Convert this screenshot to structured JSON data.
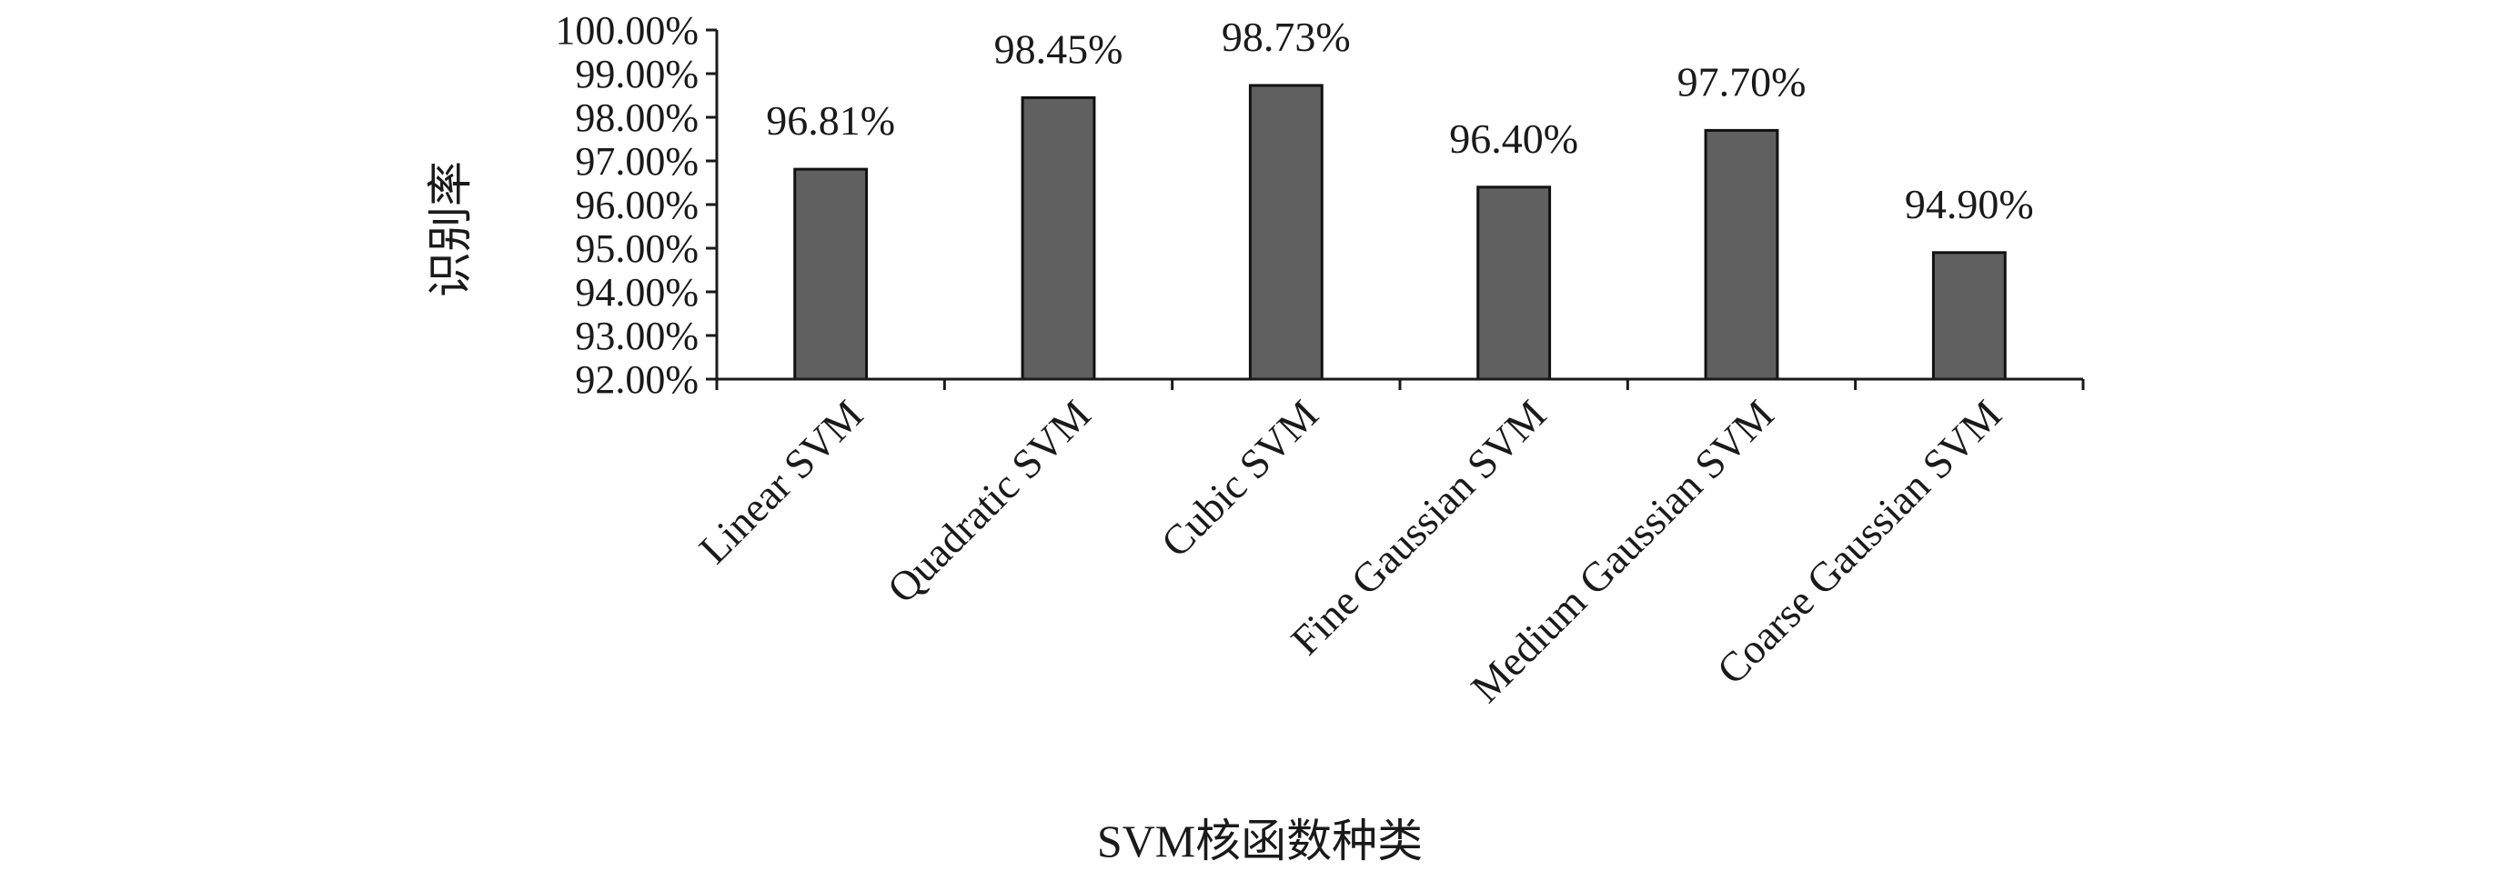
{
  "chart_data": {
    "type": "bar",
    "categories": [
      "Linear SVM",
      "Quadratic SVM",
      "Cubic SVM",
      "Fine Gaussian SVM",
      "Medium Gaussian SVM",
      "Coarse Gaussian SVM"
    ],
    "values": [
      96.81,
      98.45,
      98.73,
      96.4,
      97.7,
      94.9
    ],
    "data_labels": [
      "96.81%",
      "98.45%",
      "98.73%",
      "96.40%",
      "97.70%",
      "94.90%"
    ],
    "xlabel": "SVM核函数种类",
    "ylabel": "识别率",
    "ylim": [
      92,
      100
    ],
    "yticks": [
      92,
      93,
      94,
      95,
      96,
      97,
      98,
      99,
      100
    ],
    "ytick_labels": [
      "92.00%",
      "93.00%",
      "94.00%",
      "95.00%",
      "96.00%",
      "97.00%",
      "98.00%",
      "99.00%",
      "100.00%"
    ],
    "grid": false,
    "legend": "none",
    "bar_color": "#606060"
  }
}
